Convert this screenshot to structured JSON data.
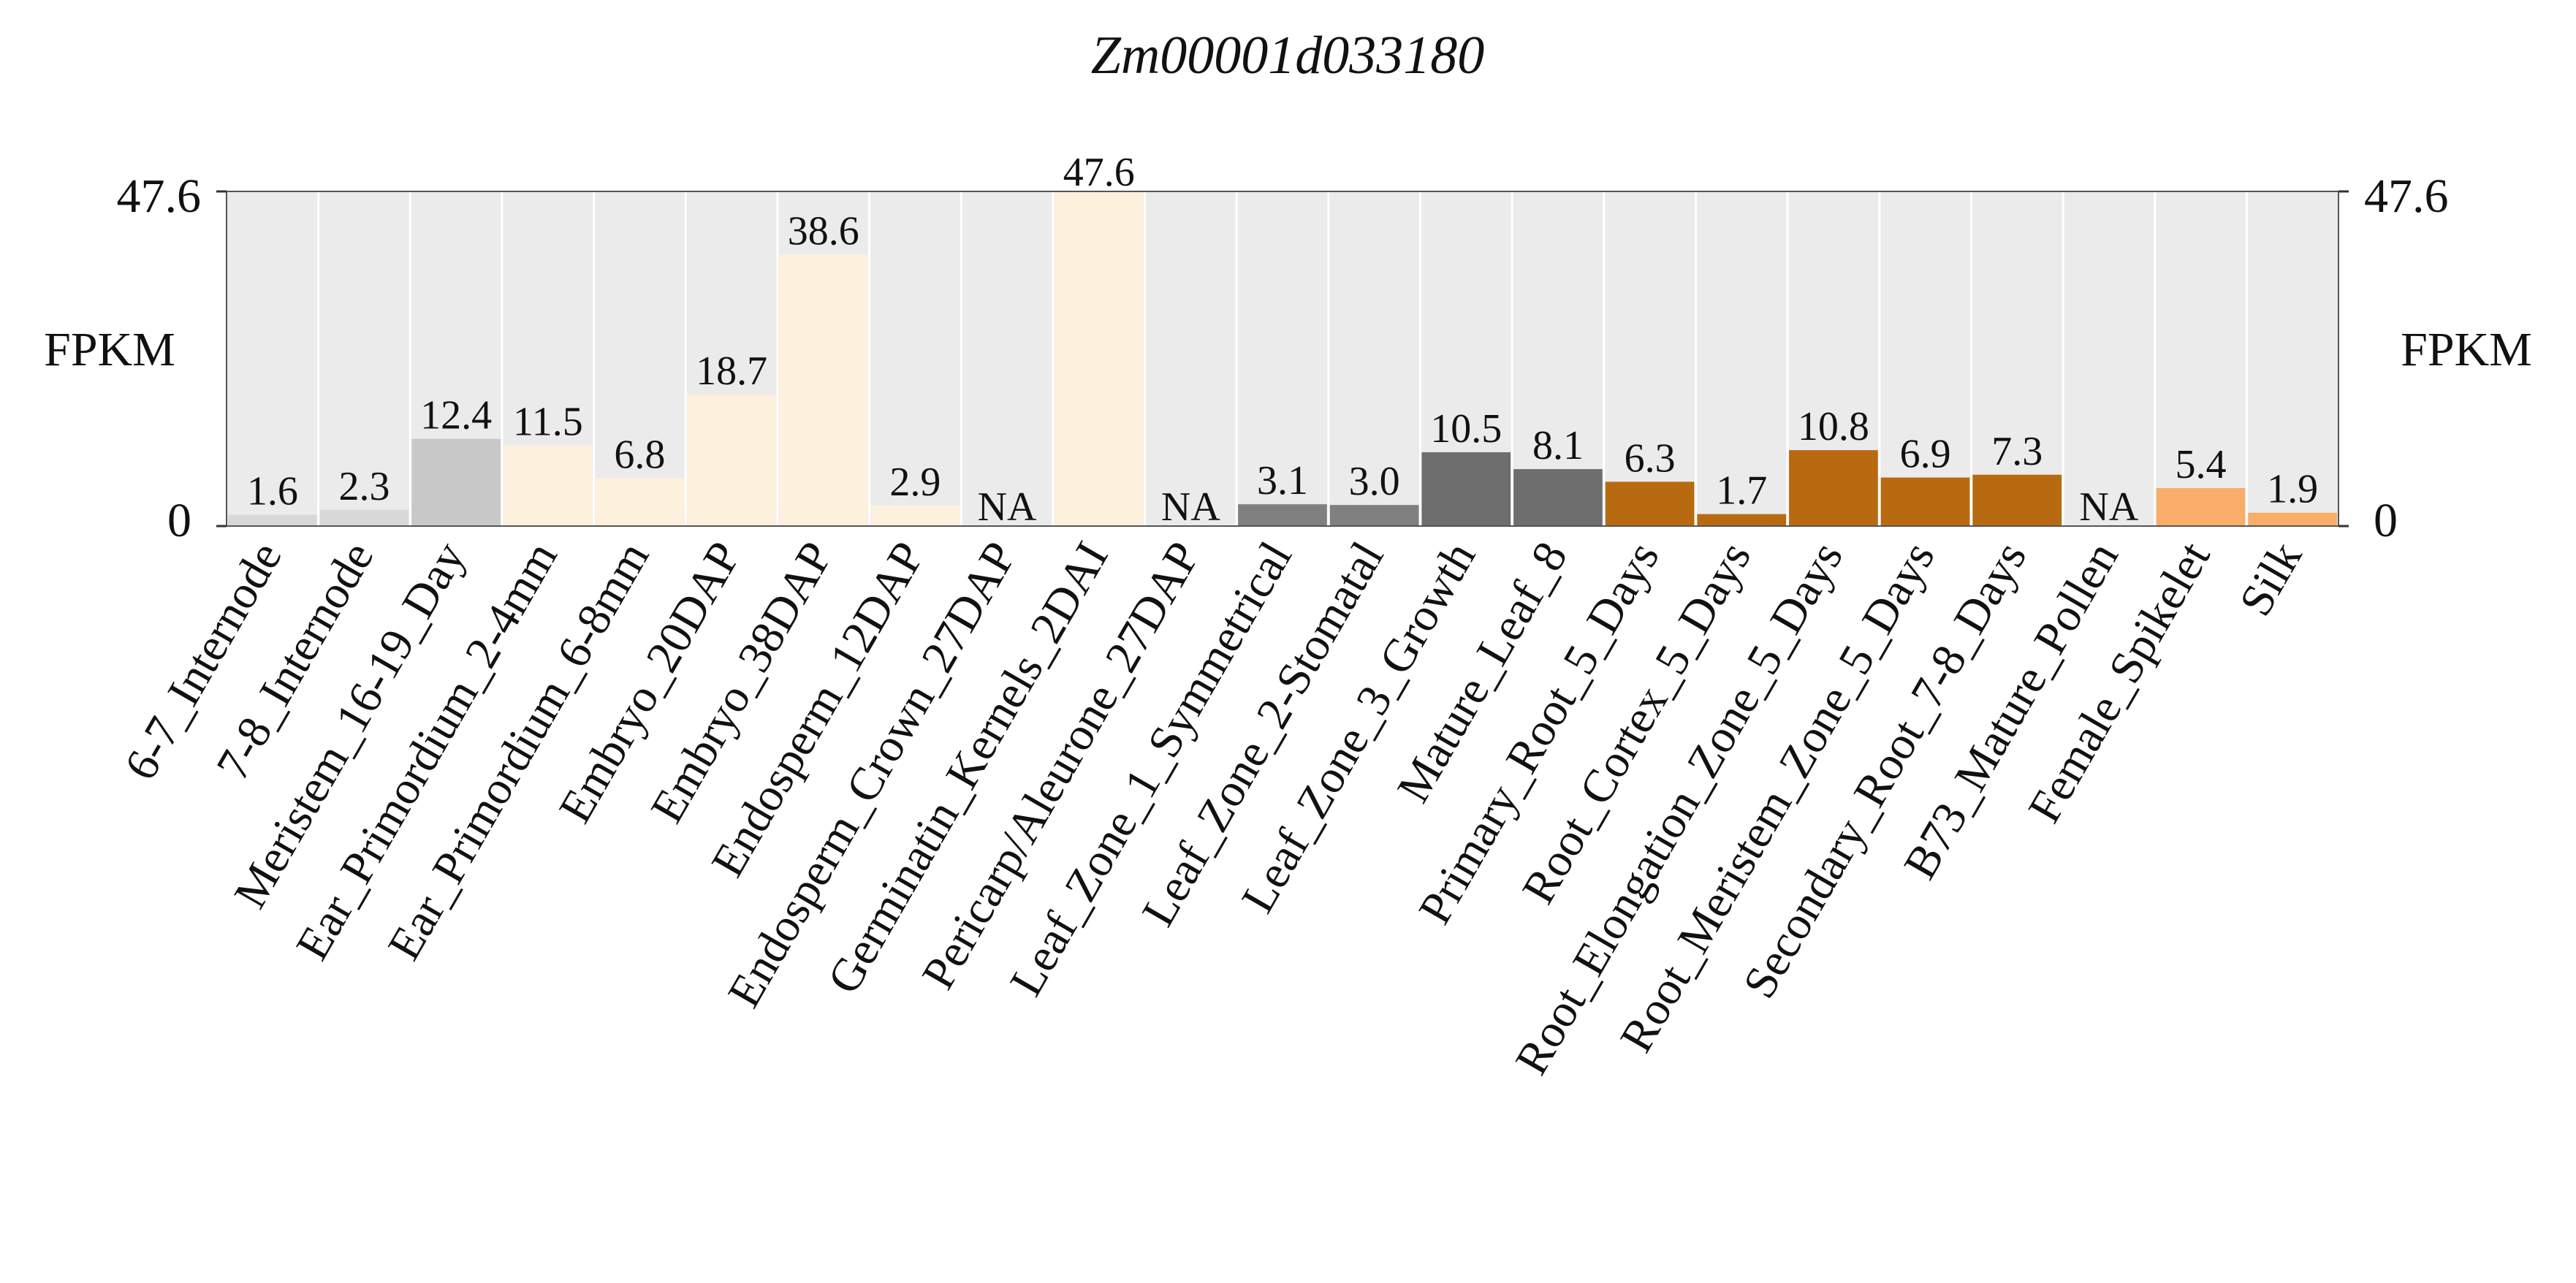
{
  "chart_data": {
    "type": "bar",
    "title": "Zm00001d033180",
    "ylabel": "FPKM",
    "ylim": [
      0,
      47.6
    ],
    "y_tick_labels": [
      "0",
      "47.6"
    ],
    "grid": true,
    "legend": "none",
    "categories": [
      "6-7_Internode",
      "7-8_Internode",
      "Meristem_16-19_Day",
      "Ear_Primordium_2-4mm",
      "Ear_Primordium_6-8mm",
      "Embryo_20DAP",
      "Embryo_38DAP",
      "Endosperm_12DAP",
      "Endosperm_Crown_27DAP",
      "Germinatin_Kernels_2DAI",
      "Pericarp/Aleurone_27DAP",
      "Leaf_Zone_1_Symmetrical",
      "Leaf_Zone_2-Stomatal",
      "Leaf_Zone_3_Growth",
      "Mature_Leaf_8",
      "Primary_Root_5_Days",
      "Root_Cortex_5_Days",
      "Root_Elongation_Zone_5_Days",
      "Root_Meristem_Zone_5_Days",
      "Secondary_Root_7-8_Days",
      "B73_Mature_Pollen",
      "Female_Spikelet",
      "Silk"
    ],
    "values": [
      1.6,
      2.3,
      12.4,
      11.5,
      6.8,
      18.7,
      38.6,
      2.9,
      null,
      47.6,
      null,
      3.1,
      3.0,
      10.5,
      8.1,
      6.3,
      1.7,
      10.8,
      6.9,
      7.3,
      null,
      5.4,
      1.9
    ],
    "value_labels": [
      "1.6",
      "2.3",
      "12.4",
      "11.5",
      "6.8",
      "18.7",
      "38.6",
      "2.9",
      "NA",
      "47.6",
      "NA",
      "3.1",
      "3.0",
      "10.5",
      "8.1",
      "6.3",
      "1.7",
      "10.8",
      "6.9",
      "7.3",
      "NA",
      "5.4",
      "1.9"
    ],
    "colors": [
      "#d8d8d8",
      "#d8d8d8",
      "#c8c8c8",
      "#fdf0dc",
      "#fdf0dc",
      "#fdf0dc",
      "#fdf0dc",
      "#fdf0dc",
      "#fdf0dc",
      "#fdf0dc",
      "#fdf0dc",
      "#808080",
      "#808080",
      "#6e6e6e",
      "#6e6e6e",
      "#b86a10",
      "#b86a10",
      "#b86a10",
      "#b86a10",
      "#b86a10",
      "#b86a10",
      "#f8ae68",
      "#f8ae68"
    ],
    "background_color": "#ebebeb",
    "column_divider_color": "#ffffff"
  }
}
